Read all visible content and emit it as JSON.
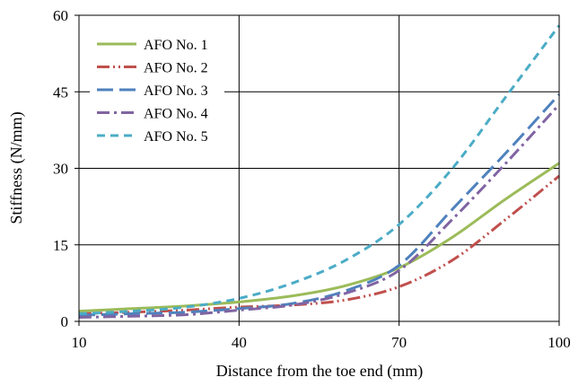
{
  "chart_data": {
    "type": "line",
    "title": "",
    "xlabel": "Distance from the toe end (mm)",
    "ylabel": "Stiffness (N/mm)",
    "xlim": [
      10,
      100
    ],
    "ylim": [
      0,
      60
    ],
    "xticks": [
      10,
      40,
      70,
      100
    ],
    "yticks": [
      0,
      15,
      30,
      45,
      60
    ],
    "grid": true,
    "legend_position": "top-left",
    "series": [
      {
        "name": "AFO No. 1",
        "color": "#9BBB59",
        "dash": "solid",
        "x": [
          10,
          20,
          30,
          40,
          50,
          60,
          70,
          80,
          90,
          100
        ],
        "y": [
          2,
          2.5,
          3,
          3.8,
          5,
          7,
          10.5,
          16.5,
          24,
          31
        ]
      },
      {
        "name": "AFO No. 2",
        "color": "#C0504D",
        "dash": "dash-dot-dot",
        "x": [
          10,
          20,
          30,
          40,
          50,
          60,
          70,
          80,
          90,
          100
        ],
        "y": [
          1.5,
          1.8,
          2.2,
          2.8,
          3.2,
          4.2,
          6.8,
          12,
          20,
          28.5
        ]
      },
      {
        "name": "AFO No. 3",
        "color": "#4F81BD",
        "dash": "long-dash",
        "x": [
          10,
          20,
          30,
          40,
          50,
          60,
          70,
          80,
          90,
          100
        ],
        "y": [
          1.2,
          1.5,
          1.8,
          2.5,
          3.5,
          6,
          11,
          22,
          33,
          44.5
        ]
      },
      {
        "name": "AFO No. 4",
        "color": "#8064A2",
        "dash": "dash-dot",
        "x": [
          10,
          20,
          30,
          40,
          50,
          60,
          70,
          80,
          90,
          100
        ],
        "y": [
          0.8,
          1,
          1.3,
          2.2,
          3.2,
          5.5,
          10,
          20,
          31,
          42.5
        ]
      },
      {
        "name": "AFO No. 5",
        "color": "#4BACC6",
        "dash": "dash",
        "x": [
          10,
          20,
          30,
          40,
          50,
          60,
          70,
          80,
          90,
          100
        ],
        "y": [
          1.5,
          2,
          2.8,
          4.5,
          7.5,
          12,
          19,
          30,
          44,
          58
        ]
      }
    ]
  }
}
